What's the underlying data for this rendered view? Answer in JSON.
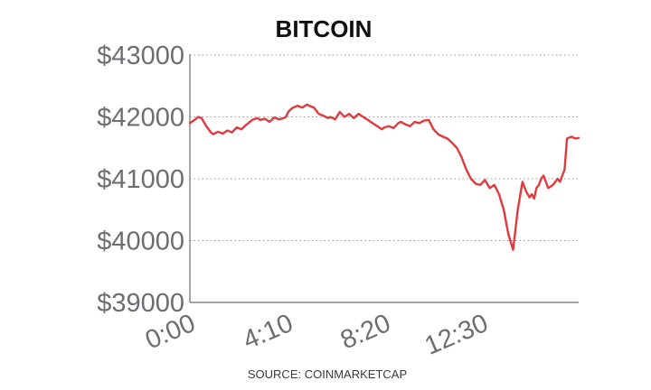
{
  "chart_data": {
    "type": "line",
    "title": "BITCOIN",
    "source": "SOURCE: COINMARKETCAP",
    "xlabel": "",
    "ylabel": "",
    "x_tick_labels": [
      "0:00",
      "4:10",
      "8:20",
      "12:30"
    ],
    "x_tick_hours": [
      0,
      4.1667,
      8.3333,
      12.5
    ],
    "xlim_hours": [
      0,
      16.6
    ],
    "ylim": [
      39000,
      43000
    ],
    "y_ticks": [
      39000,
      40000,
      41000,
      42000,
      43000
    ],
    "y_tick_labels": [
      "$39000",
      "$40000",
      "$41000",
      "$42000",
      "$43000"
    ],
    "grid": true,
    "line_color": "#e03a3e",
    "series": [
      {
        "x": [
          0,
          0.2,
          0.35,
          0.5,
          0.7,
          0.9,
          1.0,
          1.2,
          1.4,
          1.6,
          1.8,
          2.0,
          2.2,
          2.4,
          2.5,
          2.7,
          2.9,
          3.0,
          3.2,
          3.4,
          3.6,
          3.8,
          4.0,
          4.1,
          4.2,
          4.3,
          4.4,
          4.6,
          4.8,
          5.0,
          5.1,
          5.3,
          5.5,
          5.7,
          5.9,
          6.0,
          6.2,
          6.4,
          6.6,
          6.8,
          7.0,
          7.2,
          7.4,
          7.6,
          7.8,
          8.0,
          8.2,
          8.3,
          8.5,
          8.7,
          8.9,
          9.0,
          9.2,
          9.4,
          9.6,
          9.8,
          10.0,
          10.2,
          10.4,
          10.6,
          10.8,
          11.0,
          11.2,
          11.4,
          11.6,
          11.8,
          12.0,
          12.2,
          12.4,
          12.6,
          12.8,
          13.0,
          13.2,
          13.4,
          13.6,
          13.8,
          14.0,
          14.2,
          14.35,
          14.5,
          14.6,
          14.7,
          14.8,
          14.9,
          15.0,
          15.1,
          15.3,
          15.5,
          15.7,
          15.8,
          15.9,
          16.0,
          16.1,
          16.3,
          16.45,
          16.6
        ],
        "y": [
          41900,
          41950,
          42000,
          41980,
          41850,
          41750,
          41720,
          41760,
          41730,
          41780,
          41750,
          41830,
          41800,
          41870,
          41900,
          41960,
          41980,
          41950,
          41970,
          41920,
          41990,
          41960,
          41980,
          42000,
          42080,
          42120,
          42150,
          42180,
          42150,
          42200,
          42180,
          42150,
          42050,
          42020,
          41980,
          42000,
          41960,
          42080,
          42000,
          42050,
          41980,
          42050,
          42000,
          41950,
          41900,
          41850,
          41800,
          41830,
          41850,
          41820,
          41900,
          41920,
          41880,
          41850,
          41920,
          41900,
          41940,
          41950,
          41800,
          41720,
          41680,
          41650,
          41580,
          41500,
          41350,
          41150,
          41000,
          40920,
          40900,
          40980,
          40850,
          40900,
          40750,
          40500,
          40100,
          39850,
          40500,
          40950,
          40800,
          40700,
          40750,
          40680,
          40850,
          40900,
          41000,
          41050,
          40850,
          40900,
          41000,
          40950,
          41050,
          41150,
          41650,
          41680,
          41650,
          41660
        ]
      }
    ]
  }
}
